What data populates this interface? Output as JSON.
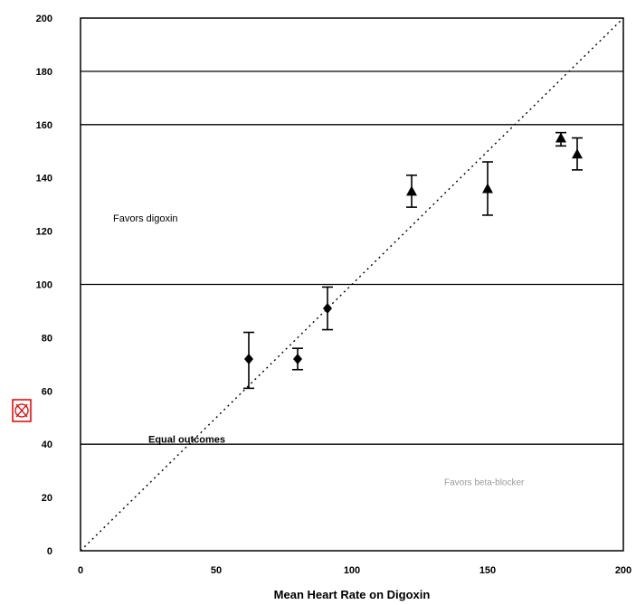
{
  "chart_data": {
    "type": "scatter",
    "title": "",
    "xlabel": "Mean Heart Rate on Digoxin",
    "ylabel": "",
    "xlim": [
      0,
      200
    ],
    "ylim": [
      0,
      200
    ],
    "x_ticks": [
      "0",
      "50",
      "100",
      "150",
      "200"
    ],
    "y_ticks": [
      "0",
      "20",
      "40",
      "60",
      "80",
      "100",
      "120",
      "140",
      "160",
      "180",
      "200"
    ],
    "grid_y": [
      40,
      100,
      160,
      180
    ],
    "reference_line": {
      "style": "dotted",
      "from": [
        0,
        0
      ],
      "to": [
        200,
        200
      ]
    },
    "annotations": [
      {
        "text": "Favors digoxin",
        "x": 12,
        "y": 125
      },
      {
        "text": "Equal outcomes",
        "x": 25,
        "y": 42
      },
      {
        "text": "Favors beta-blocker",
        "x": 134,
        "y": 26
      }
    ],
    "series": [
      {
        "marker": "diamond",
        "points": [
          {
            "x": 62,
            "y": 72,
            "err_low": 61,
            "err_high": 82
          },
          {
            "x": 80,
            "y": 72,
            "err_low": 68,
            "err_high": 76
          },
          {
            "x": 91,
            "y": 91,
            "err_low": 83,
            "err_high": 99
          }
        ]
      },
      {
        "marker": "triangle",
        "points": [
          {
            "x": 122,
            "y": 135,
            "err_low": 129,
            "err_high": 141
          },
          {
            "x": 150,
            "y": 136,
            "err_low": 126,
            "err_high": 146
          },
          {
            "x": 177,
            "y": 155,
            "err_low": 152,
            "err_high": 157
          },
          {
            "x": 183,
            "y": 149,
            "err_low": 143,
            "err_high": 155
          }
        ]
      }
    ]
  }
}
